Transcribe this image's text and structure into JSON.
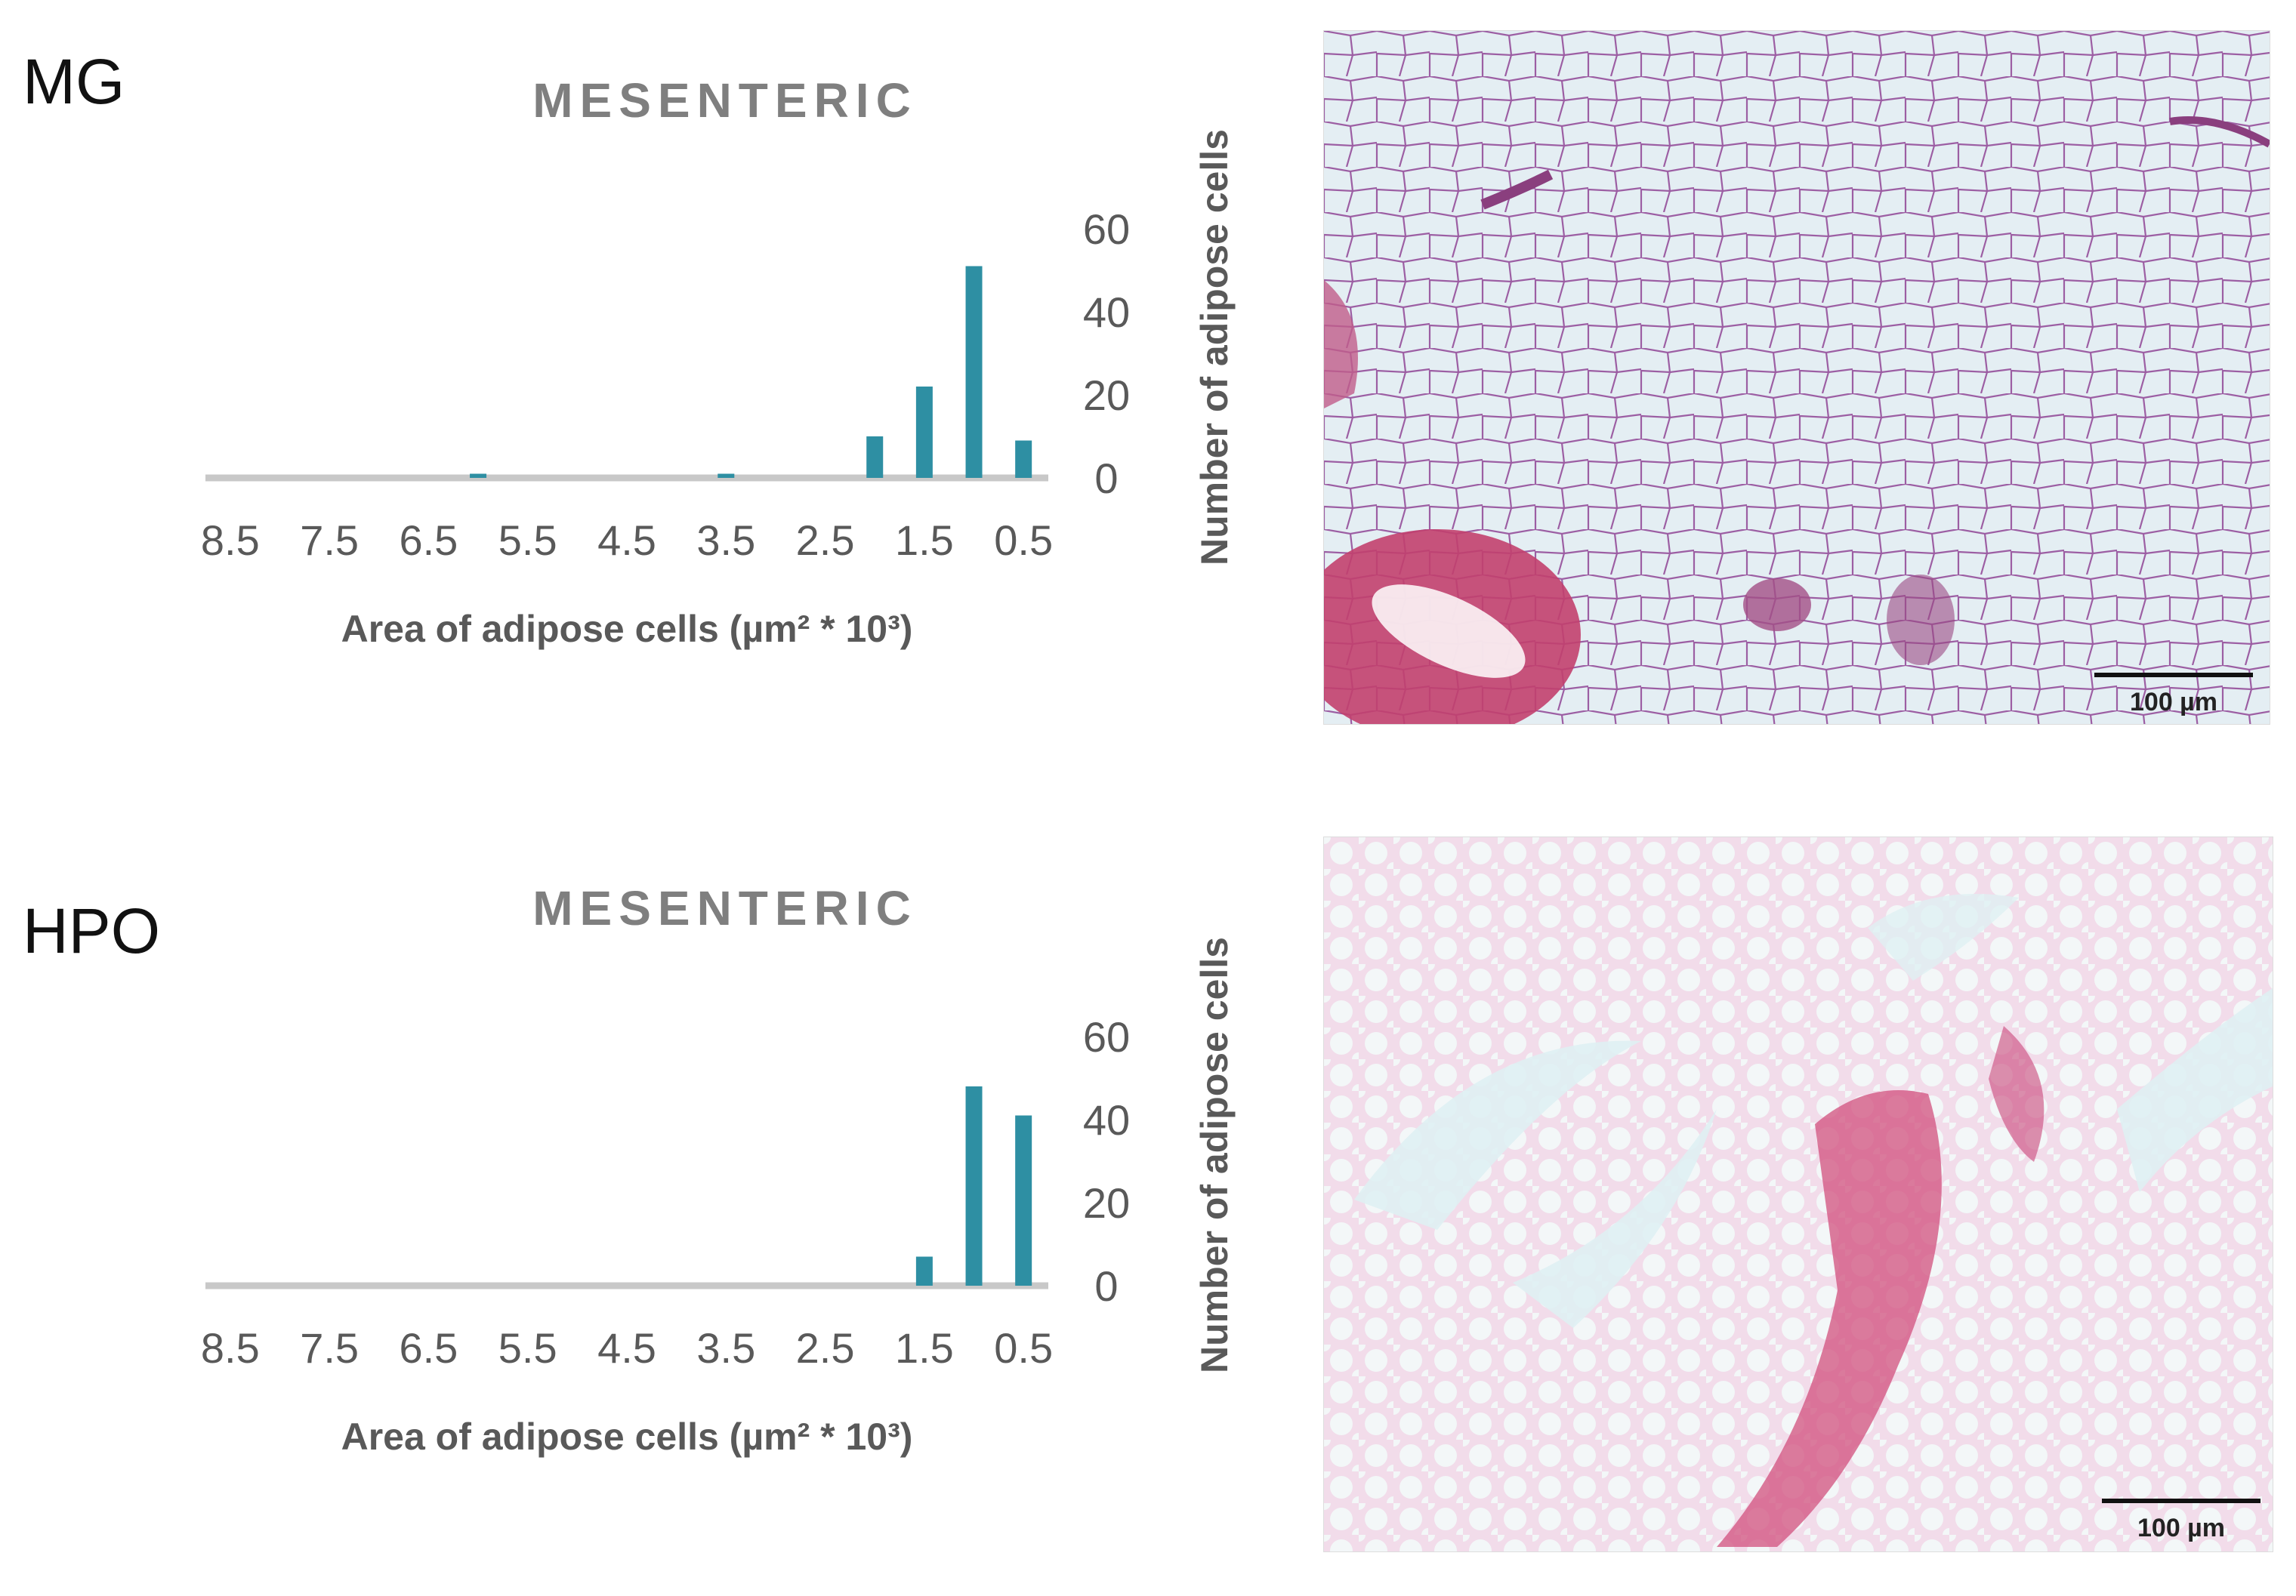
{
  "colors": {
    "bar": "#2e8fa3",
    "axis": "#c8c8c8",
    "title": "#7f7f7f",
    "tick": "#595959"
  },
  "panels": [
    {
      "label": "MG",
      "scale_label": "100 µm",
      "chart_data": {
        "type": "bar",
        "title": "MESENTERIC",
        "xlabel": "Area of adipose cells (µm² * 10³)",
        "ylabel": "Number of adipose cells",
        "x_axis_reversed": true,
        "y_axis_position": "right",
        "categories": [
          "0.5",
          "1",
          "1.5",
          "2",
          "2.5",
          "3",
          "3.5",
          "4",
          "4.5",
          "5",
          "5.5",
          "6",
          "6.5",
          "7",
          "7.5",
          "8",
          "8.5"
        ],
        "values": [
          9,
          51,
          22,
          10,
          0,
          0,
          1,
          0,
          0,
          0,
          0,
          1,
          0,
          0,
          0,
          0,
          0
        ],
        "x_tick_labels": [
          "8.5",
          "7.5",
          "6.5",
          "5.5",
          "4.5",
          "3.5",
          "2.5",
          "1.5",
          "0.5"
        ],
        "y_ticks": [
          "0",
          "20",
          "40",
          "60"
        ],
        "ylim": [
          0,
          60
        ],
        "grid": false
      }
    },
    {
      "label": "HPO",
      "scale_label": "100 µm",
      "chart_data": {
        "type": "bar",
        "title": "MESENTERIC",
        "xlabel": "Area of adipose cells (µm² * 10³)",
        "ylabel": "Number of adipose cells",
        "x_axis_reversed": true,
        "y_axis_position": "right",
        "categories": [
          "0.5",
          "1",
          "1.5",
          "2",
          "2.5",
          "3",
          "3.5",
          "4",
          "4.5",
          "5",
          "5.5",
          "6",
          "6.5",
          "7",
          "7.5",
          "8",
          "8.5"
        ],
        "values": [
          41,
          48,
          7,
          0,
          0,
          0,
          0,
          0,
          0,
          0,
          0,
          0,
          0,
          0,
          0,
          0,
          0
        ],
        "x_tick_labels": [
          "8.5",
          "7.5",
          "6.5",
          "5.5",
          "4.5",
          "3.5",
          "2.5",
          "1.5",
          "0.5"
        ],
        "y_ticks": [
          "0",
          "20",
          "40",
          "60"
        ],
        "ylim": [
          0,
          60
        ],
        "grid": false
      }
    }
  ]
}
